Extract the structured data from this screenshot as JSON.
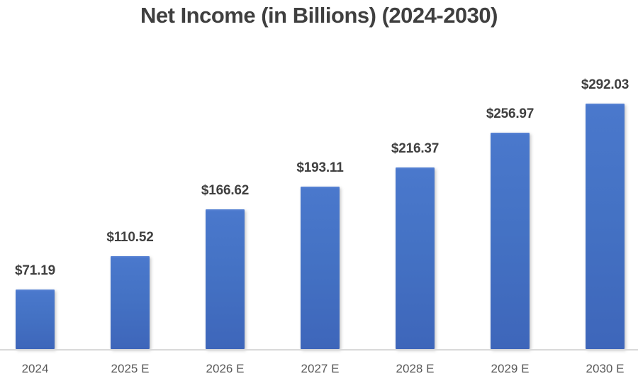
{
  "chart_data": {
    "type": "bar",
    "title": "Net Income (in Billions) (2024-2030)",
    "categories": [
      "2024",
      "2025 E",
      "2026 E",
      "2027 E",
      "2028 E",
      "2029 E",
      "2030 E"
    ],
    "values": [
      71.19,
      110.52,
      166.62,
      193.11,
      216.37,
      256.97,
      292.03
    ],
    "value_labels": [
      "$71.19",
      "$110.52",
      "$166.62",
      "$193.11",
      "$216.37",
      "$256.97",
      "$292.03"
    ],
    "series_name": "Net Income",
    "unit": "USD billions",
    "xlabel": "",
    "ylabel": "",
    "ylim": [
      0,
      350
    ],
    "grid": false,
    "legend_position": "none",
    "bar_color": "#4472c4",
    "axis_line_color": "#d9d9d9",
    "value_label_color": "#404040",
    "category_label_color": "#595959",
    "title_color": "#3f3f3f",
    "background_color": "#ffffff"
  }
}
